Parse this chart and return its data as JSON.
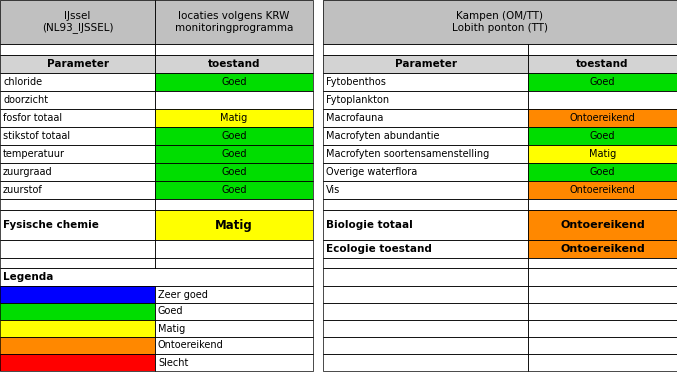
{
  "header_bg": "#c0c0c0",
  "col1_header": "IJssel\n(NL93_IJSSEL)",
  "col2_header": "locaties volgens KRW\nmonitoringprogramma",
  "col3_header": "Kampen (OM/TT)\nLobith ponton (TT)",
  "subheader_bg": "#d3d3d3",
  "left_table": {
    "rows": [
      [
        "chloride",
        "Goed",
        "#00dd00"
      ],
      [
        "doorzicht",
        "",
        ""
      ],
      [
        "fosfor totaal",
        "Matig",
        "#ffff00"
      ],
      [
        "stikstof totaal",
        "Goed",
        "#00dd00"
      ],
      [
        "temperatuur",
        "Goed",
        "#00dd00"
      ],
      [
        "zuurgraad",
        "Goed",
        "#00dd00"
      ],
      [
        "zuurstof",
        "Goed",
        "#00dd00"
      ]
    ],
    "summary_label": "Fysische chemie",
    "summary_value": "Matig",
    "summary_color": "#ffff00"
  },
  "right_table": {
    "rows": [
      [
        "Fytobenthos",
        "Goed",
        "#00dd00"
      ],
      [
        "Fytoplankton",
        "",
        ""
      ],
      [
        "Macrofauna",
        "Ontoereikend",
        "#ff8800"
      ],
      [
        "Macrofyten abundantie",
        "Goed",
        "#00dd00"
      ],
      [
        "Macrofyten soortensamenstelling",
        "Matig",
        "#ffff00"
      ],
      [
        "Overige waterflora",
        "Goed",
        "#00dd00"
      ],
      [
        "Vis",
        "Ontoereikend",
        "#ff8800"
      ]
    ],
    "summary_label": "Biologie totaal",
    "summary_value": "Ontoereikend",
    "summary_color": "#ff8800",
    "ecology_label": "Ecologie toestand",
    "ecology_value": "Ontoereikend",
    "ecology_color": "#ff8800"
  },
  "legend": {
    "title": "Legenda",
    "items": [
      {
        "color": "#0000ff",
        "label": "Zeer goed"
      },
      {
        "color": "#00dd00",
        "label": "Goed"
      },
      {
        "color": "#ffff00",
        "label": "Matig"
      },
      {
        "color": "#ff8800",
        "label": "Ontoereikend"
      },
      {
        "color": "#ff0000",
        "label": "Slecht"
      }
    ]
  },
  "border_color": "#000000",
  "fig_width": 6.77,
  "fig_height": 3.79,
  "dpi": 100
}
